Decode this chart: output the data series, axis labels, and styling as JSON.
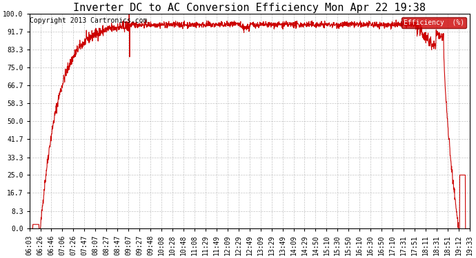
{
  "title": "Inverter DC to AC Conversion Efficiency Mon Apr 22 19:38",
  "copyright": "Copyright 2013 Cartronics.com",
  "legend_label": "Efficiency  (%)",
  "legend_bg": "#cc0000",
  "legend_text_color": "#ffffff",
  "line_color": "#cc0000",
  "background_color": "#ffffff",
  "grid_color": "#aaaaaa",
  "yticks": [
    0.0,
    8.3,
    16.7,
    25.0,
    33.3,
    41.7,
    50.0,
    58.3,
    66.7,
    75.0,
    83.3,
    91.7,
    100.0
  ],
  "xtick_labels": [
    "06:03",
    "06:26",
    "06:46",
    "07:06",
    "07:26",
    "07:47",
    "08:07",
    "08:27",
    "08:47",
    "09:07",
    "09:27",
    "09:48",
    "10:08",
    "10:28",
    "10:48",
    "11:08",
    "11:29",
    "11:49",
    "12:09",
    "12:29",
    "12:49",
    "13:09",
    "13:29",
    "13:49",
    "14:09",
    "14:29",
    "14:50",
    "15:10",
    "15:30",
    "15:50",
    "16:10",
    "16:30",
    "16:50",
    "17:10",
    "17:31",
    "17:51",
    "18:11",
    "18:31",
    "18:51",
    "19:12",
    "19:33"
  ],
  "ylim": [
    0.0,
    100.0
  ],
  "title_fontsize": 11,
  "copyright_fontsize": 7,
  "tick_fontsize": 7,
  "line_width": 0.8,
  "figwidth": 6.9,
  "figheight": 3.75,
  "dpi": 100
}
